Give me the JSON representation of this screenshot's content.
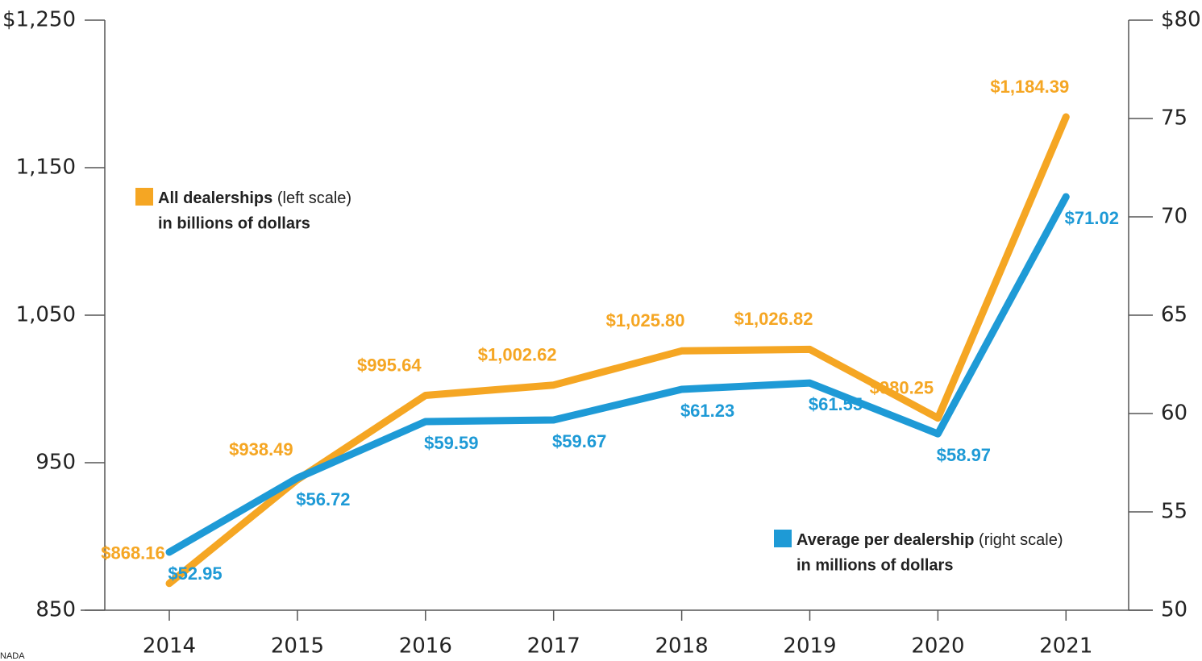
{
  "chart_data": {
    "type": "line",
    "categories": [
      "2014",
      "2015",
      "2016",
      "2017",
      "2018",
      "2019",
      "2020",
      "2021"
    ],
    "series": [
      {
        "name": "All dealerships",
        "scale_note": "(left scale)",
        "unit_note": "in billions of dollars",
        "color": "#f5a623",
        "values": [
          868.16,
          938.49,
          995.64,
          1002.62,
          1025.8,
          1026.82,
          980.25,
          1184.39
        ],
        "value_labels": [
          "$868.16",
          "$938.49",
          "$995.64",
          "$1,002.62",
          "$1,025.80",
          "$1,026.82",
          "$980.25",
          "$1,184.39"
        ]
      },
      {
        "name": "Average per dealership",
        "scale_note": "(right scale)",
        "unit_note": "in millions of dollars",
        "color": "#1e9ad6",
        "axis": "y2",
        "values": [
          52.95,
          56.72,
          59.59,
          59.67,
          61.23,
          61.55,
          58.97,
          71.02
        ],
        "value_labels": [
          "$52.95",
          "$56.72",
          "$59.59",
          "$59.67",
          "$61.23",
          "$61.55",
          "$58.97",
          "$71.02"
        ]
      }
    ],
    "ylim": [
      850,
      1250
    ],
    "yticks": [
      850,
      950,
      {
        "value": 1050,
        "label": "1,050"
      },
      {
        "value": 1150,
        "label": "1,150"
      },
      {
        "value": 1250,
        "label": "$1,250"
      }
    ],
    "y2lim": [
      50,
      80
    ],
    "y2ticks": [
      50,
      55,
      60,
      65,
      70,
      75,
      {
        "value": 80,
        "label": "$80"
      }
    ],
    "source": "NADA"
  }
}
